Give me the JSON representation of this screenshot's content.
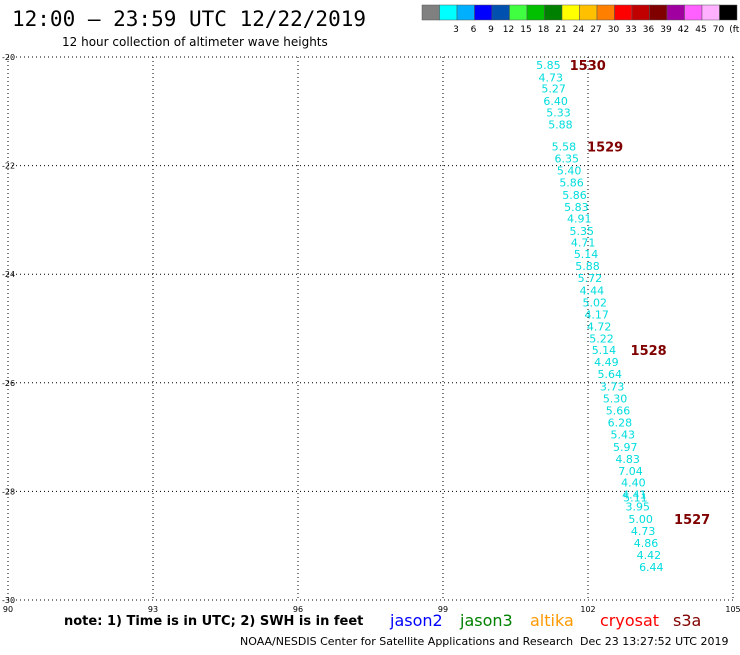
{
  "header": {
    "title": "12:00 – 23:59 UTC 12/22/2019",
    "subtitle": "12 hour collection of altimeter wave heights"
  },
  "legend": {
    "swatches": [
      {
        "color": "#808080",
        "label": ""
      },
      {
        "color": "#00ffff",
        "label": "3"
      },
      {
        "color": "#00b0ff",
        "label": "6"
      },
      {
        "color": "#0000ff",
        "label": "9"
      },
      {
        "color": "#0050b0",
        "label": "12"
      },
      {
        "color": "#40ff40",
        "label": "15"
      },
      {
        "color": "#00c000",
        "label": "18"
      },
      {
        "color": "#008000",
        "label": "21"
      },
      {
        "color": "#ffff00",
        "label": "24"
      },
      {
        "color": "#ffc000",
        "label": "27"
      },
      {
        "color": "#ff8000",
        "label": "30"
      },
      {
        "color": "#ff0000",
        "label": "33"
      },
      {
        "color": "#c00000",
        "label": "36"
      },
      {
        "color": "#800000",
        "label": "39"
      },
      {
        "color": "#a000a0",
        "label": "42"
      },
      {
        "color": "#ff60ff",
        "label": "45"
      },
      {
        "color": "#ffb0ff",
        "label": "70"
      },
      {
        "color": "#000000",
        "label": "(ft)"
      }
    ]
  },
  "chart_data": {
    "type": "scatter",
    "x_ticks": [
      "90",
      "93",
      "96",
      "99",
      "102",
      "105"
    ],
    "y_ticks": [
      "-20",
      "-22",
      "-24",
      "-26",
      "-28",
      "-30"
    ],
    "xlim": [
      90,
      105
    ],
    "ylim": [
      -30,
      -20
    ],
    "grid": true,
    "color": "#00dddd",
    "pass_color": "#800000",
    "points": [
      {
        "lon": 101.18,
        "lat": -20.15,
        "label": "5.85"
      },
      {
        "lon": 101.23,
        "lat": -20.38,
        "label": "4.73"
      },
      {
        "lon": 101.29,
        "lat": -20.58,
        "label": "5.27"
      },
      {
        "lon": 101.33,
        "lat": -20.81,
        "label": "6.40"
      },
      {
        "lon": 101.39,
        "lat": -21.02,
        "label": "5.33"
      },
      {
        "lon": 101.43,
        "lat": -21.24,
        "label": "5.88"
      },
      {
        "lon": 101.5,
        "lat": -21.65,
        "label": "5.58"
      },
      {
        "lon": 101.56,
        "lat": -21.87,
        "label": "6.35"
      },
      {
        "lon": 101.61,
        "lat": -22.09,
        "label": "5.40"
      },
      {
        "lon": 101.66,
        "lat": -22.31,
        "label": "5.86"
      },
      {
        "lon": 101.72,
        "lat": -22.54,
        "label": "5.86"
      },
      {
        "lon": 101.76,
        "lat": -22.76,
        "label": "5.83"
      },
      {
        "lon": 101.82,
        "lat": -22.97,
        "label": "4.91"
      },
      {
        "lon": 101.87,
        "lat": -23.2,
        "label": "5.35"
      },
      {
        "lon": 101.9,
        "lat": -23.42,
        "label": "4.71"
      },
      {
        "lon": 101.96,
        "lat": -23.63,
        "label": "5.14"
      },
      {
        "lon": 101.99,
        "lat": -23.85,
        "label": "5.88"
      },
      {
        "lon": 102.04,
        "lat": -24.07,
        "label": "5.72"
      },
      {
        "lon": 102.08,
        "lat": -24.3,
        "label": "4.44"
      },
      {
        "lon": 102.14,
        "lat": -24.52,
        "label": "5.02"
      },
      {
        "lon": 102.18,
        "lat": -24.74,
        "label": "4.17"
      },
      {
        "lon": 102.23,
        "lat": -24.96,
        "label": "4.72"
      },
      {
        "lon": 102.28,
        "lat": -25.18,
        "label": "5.22"
      },
      {
        "lon": 102.33,
        "lat": -25.4,
        "label": "5.14"
      },
      {
        "lon": 102.38,
        "lat": -25.62,
        "label": "4.49"
      },
      {
        "lon": 102.45,
        "lat": -25.84,
        "label": "5.64"
      },
      {
        "lon": 102.5,
        "lat": -26.07,
        "label": "3.73"
      },
      {
        "lon": 102.56,
        "lat": -26.29,
        "label": "5.30"
      },
      {
        "lon": 102.62,
        "lat": -26.51,
        "label": "5.66"
      },
      {
        "lon": 102.66,
        "lat": -26.73,
        "label": "6.28"
      },
      {
        "lon": 102.72,
        "lat": -26.95,
        "label": "5.43"
      },
      {
        "lon": 102.77,
        "lat": -27.18,
        "label": "5.97"
      },
      {
        "lon": 102.82,
        "lat": -27.4,
        "label": "4.83"
      },
      {
        "lon": 102.88,
        "lat": -27.62,
        "label": "7.04"
      },
      {
        "lon": 102.94,
        "lat": -27.84,
        "label": "4.40"
      },
      {
        "lon": 102.96,
        "lat": -28.06,
        "label": "4.41"
      },
      {
        "lon": 102.98,
        "lat": -28.11,
        "label": "5.11"
      },
      {
        "lon": 103.03,
        "lat": -28.28,
        "label": "3.95"
      },
      {
        "lon": 103.09,
        "lat": -28.51,
        "label": "5.00"
      },
      {
        "lon": 103.14,
        "lat": -28.73,
        "label": "4.73"
      },
      {
        "lon": 103.2,
        "lat": -28.95,
        "label": "4.86"
      },
      {
        "lon": 103.26,
        "lat": -29.17,
        "label": "4.42"
      },
      {
        "lon": 103.31,
        "lat": -29.39,
        "label": "6.44"
      }
    ],
    "pass_labels": [
      {
        "lon": 101.62,
        "lat": -20.15,
        "label": "1530"
      },
      {
        "lon": 101.98,
        "lat": -21.65,
        "label": "1529"
      },
      {
        "lon": 102.88,
        "lat": -25.4,
        "label": "1528"
      },
      {
        "lon": 103.78,
        "lat": -28.51,
        "label": "1527"
      }
    ]
  },
  "footer": {
    "note": "note:  1) Time is in UTC; 2) SWH is in feet",
    "satellites": [
      {
        "name": "jason2",
        "color": "#0000ff"
      },
      {
        "name": "jason3",
        "color": "#008000"
      },
      {
        "name": "altika",
        "color": "#ff9900"
      },
      {
        "name": "cryosat",
        "color": "#ff0000"
      },
      {
        "name": "s3a",
        "color": "#800000"
      }
    ],
    "credit": "NOAA/NESDIS Center for Satellite Applications and Research",
    "timestamp": "Dec 23 13:27:52 UTC 2019"
  }
}
